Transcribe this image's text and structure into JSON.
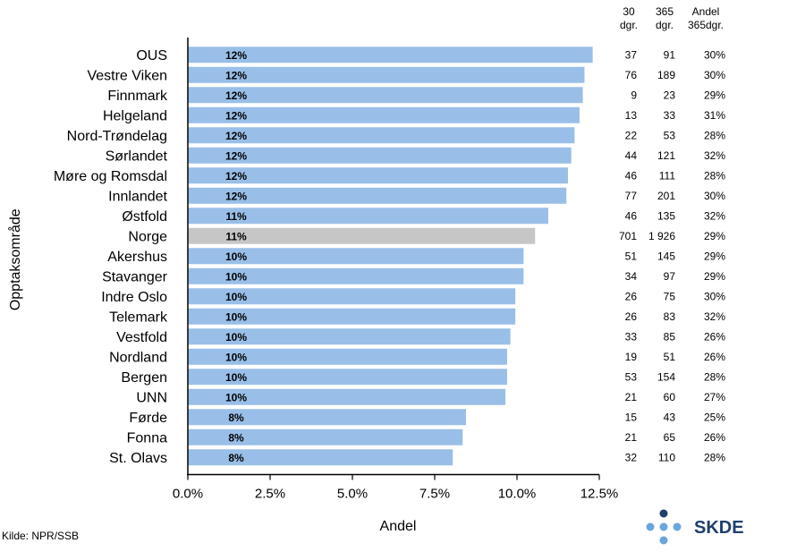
{
  "chart_data": {
    "type": "bar",
    "orientation": "horizontal",
    "categories": [
      "OUS",
      "Vestre Viken",
      "Finnmark",
      "Helgeland",
      "Nord-Trøndelag",
      "Sørlandet",
      "Møre og Romsdal",
      "Innlandet",
      "Østfold",
      "Norge",
      "Akershus",
      "Stavanger",
      "Indre Oslo",
      "Telemark",
      "Vestfold",
      "Nordland",
      "Bergen",
      "UNN",
      "Førde",
      "Fonna",
      "St. Olavs"
    ],
    "values": [
      12.3,
      12.05,
      12.0,
      11.9,
      11.75,
      11.65,
      11.55,
      11.5,
      10.95,
      10.55,
      10.2,
      10.2,
      9.95,
      9.95,
      9.8,
      9.7,
      9.7,
      9.65,
      8.45,
      8.35,
      8.05
    ],
    "bar_labels": [
      "12%",
      "12%",
      "12%",
      "12%",
      "12%",
      "12%",
      "12%",
      "12%",
      "11%",
      "11%",
      "10%",
      "10%",
      "10%",
      "10%",
      "10%",
      "10%",
      "10%",
      "10%",
      "8%",
      "8%",
      "8%"
    ],
    "highlight_category": "Norge",
    "colors": {
      "bar": "#99bfe8",
      "highlight": "#c6c6c6"
    },
    "xlabel": "Andel",
    "ylabel": "Opptaksområde",
    "xlim": [
      0,
      12.5
    ],
    "xticks": [
      "0.0%",
      "2.5%",
      "5.0%",
      "7.5%",
      "10.0%",
      "12.5%"
    ],
    "grid": false,
    "table": {
      "headers": [
        [
          "30",
          "dgr."
        ],
        [
          "365",
          "dgr."
        ],
        [
          "Andel",
          "365dgr."
        ]
      ],
      "col_30": [
        "37",
        "76",
        "9",
        "13",
        "22",
        "44",
        "46",
        "77",
        "46",
        "701",
        "51",
        "34",
        "26",
        "26",
        "33",
        "19",
        "53",
        "21",
        "15",
        "21",
        "32"
      ],
      "col_365": [
        "91",
        "189",
        "23",
        "33",
        "53",
        "121",
        "111",
        "201",
        "135",
        "1 926",
        "145",
        "97",
        "75",
        "83",
        "85",
        "51",
        "154",
        "60",
        "43",
        "65",
        "110"
      ],
      "col_andel": [
        "30%",
        "30%",
        "29%",
        "31%",
        "28%",
        "32%",
        "28%",
        "30%",
        "32%",
        "29%",
        "29%",
        "29%",
        "30%",
        "32%",
        "26%",
        "26%",
        "28%",
        "27%",
        "25%",
        "26%",
        "28%"
      ]
    }
  },
  "source": "Kilde: NPR/SSB",
  "logo": {
    "text": "SKDE",
    "color": "#1f3f6e",
    "dot_light": "#6aa5dc",
    "dot_dark": "#1f3f6e"
  }
}
